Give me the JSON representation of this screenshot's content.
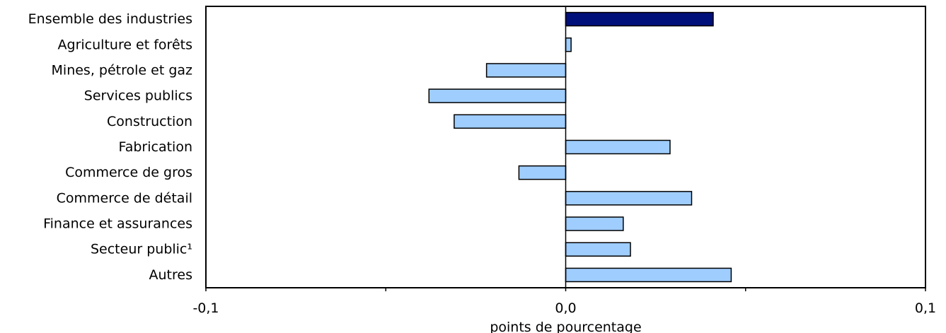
{
  "chart_data": {
    "type": "bar",
    "orientation": "horizontal",
    "title": "",
    "xlabel": "points de pourcentage",
    "ylabel": "",
    "categories": [
      "Ensemble des industries",
      "Agriculture et forêts",
      "Mines, pétrole et gaz",
      "Services publics",
      "Construction",
      "Fabrication",
      "Commerce de gros",
      "Commerce de détail",
      "Finance et assurances",
      "Secteur public¹",
      "Autres"
    ],
    "values": [
      0.041,
      0.0015,
      -0.022,
      -0.038,
      -0.031,
      0.029,
      -0.013,
      0.035,
      0.016,
      0.018,
      0.046
    ],
    "highlight_index": 0,
    "xlim": [
      -0.1,
      0.1
    ],
    "x_ticks": [
      -0.1,
      -0.05,
      0,
      0.05,
      0.1
    ],
    "x_tick_labels": [
      "-0,1",
      "",
      "0,0",
      "",
      "0,1"
    ],
    "grid": false,
    "legend": "none",
    "colors": {
      "highlight": "#00107a",
      "bar": "#9fcdfe",
      "outline": "#000000"
    }
  }
}
